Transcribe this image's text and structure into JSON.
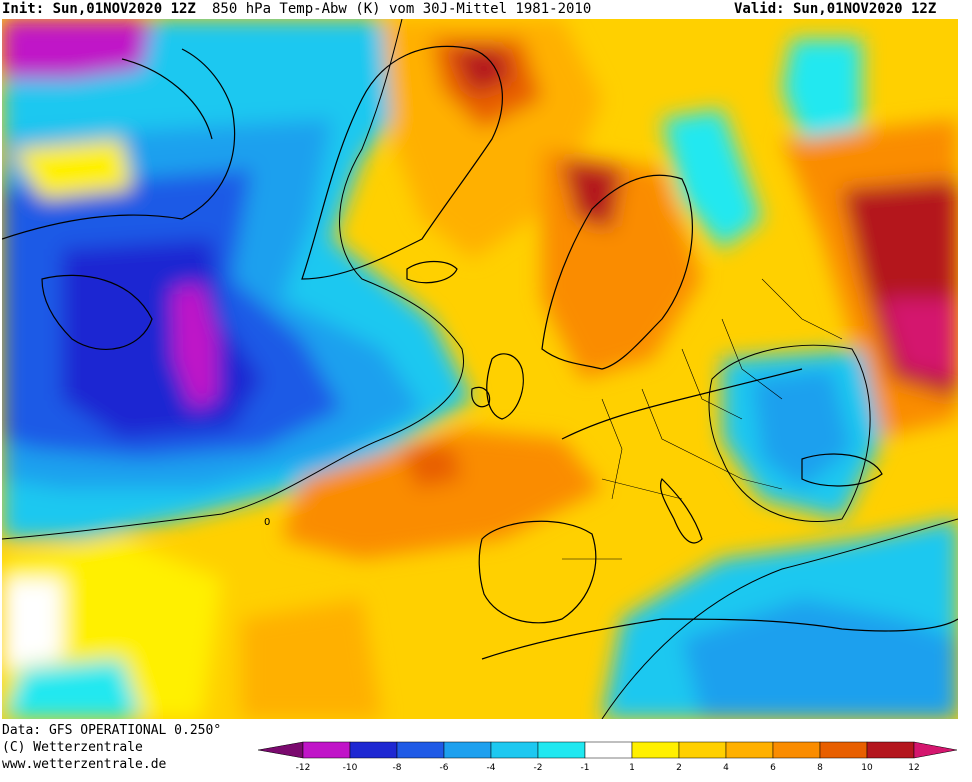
{
  "header": {
    "init": "Init: Sun,01NOV2020 12Z",
    "title": "850 hPa Temp-Abw (K) vom 30J-Mittel 1981-2010",
    "valid": "Valid: Sun,01NOV2020 12Z"
  },
  "footer": {
    "data_source": "Data: GFS OPERATIONAL 0.250°",
    "copyright": "(C) Wetterzentrale",
    "url": "www.wetterzentrale.de"
  },
  "map": {
    "region": "North Atlantic and Europe",
    "contour_label": "0"
  },
  "legend": {
    "bins": [
      {
        "color": "#7a0a6e"
      },
      {
        "color": "#c014c8"
      },
      {
        "color": "#1e28d2"
      },
      {
        "color": "#1f5ae6"
      },
      {
        "color": "#1ea0ee"
      },
      {
        "color": "#1ec8f0"
      },
      {
        "color": "#20e8f0"
      },
      {
        "color": "#ffffff"
      },
      {
        "color": "#fff000"
      },
      {
        "color": "#ffd000"
      },
      {
        "color": "#ffb000"
      },
      {
        "color": "#fa8c00"
      },
      {
        "color": "#e85f00"
      },
      {
        "color": "#b4161e"
      },
      {
        "color": "#d4166e"
      }
    ],
    "tick_labels": [
      "-12",
      "-10",
      "-8",
      "-6",
      "-4",
      "-2",
      "-1",
      "1",
      "2",
      "4",
      "6",
      "8",
      "10",
      "12"
    ]
  }
}
